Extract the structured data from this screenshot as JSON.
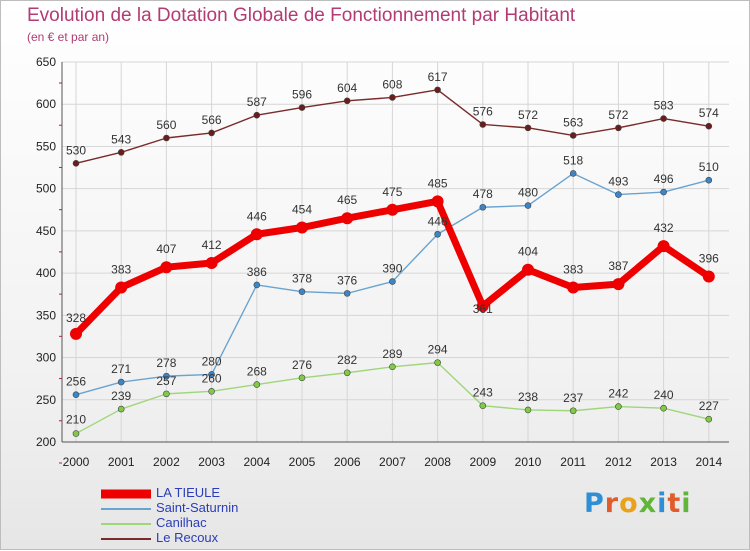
{
  "header": {
    "title": "Evolution de la Dotation Globale de Fonctionnement par Habitant",
    "subtitle": "(en € et par an)"
  },
  "logo": {
    "letters": [
      "P",
      "r",
      "o",
      "x",
      "i",
      "t",
      "i"
    ]
  },
  "colors": {
    "title": "#b23b73",
    "grid": "#d6d6d6",
    "axis_tick_accent": "#c0154f"
  },
  "chart_data": {
    "type": "line",
    "title": "Evolution de la Dotation Globale de Fonctionnement par Habitant",
    "subtitle": "(en € et par an)",
    "xlabel": "",
    "ylabel": "",
    "x": [
      2000,
      2001,
      2002,
      2003,
      2004,
      2005,
      2006,
      2007,
      2008,
      2009,
      2010,
      2011,
      2012,
      2013,
      2014
    ],
    "x_tick_labels": [
      "2000",
      "2001",
      "2002",
      "2003",
      "2004",
      "2005",
      "2006",
      "2007",
      "2008",
      "2009",
      "2010",
      "2011",
      "2012",
      "2013",
      "2014"
    ],
    "ylim": [
      200,
      650
    ],
    "y_ticks": [
      200,
      250,
      300,
      350,
      400,
      450,
      500,
      550,
      600,
      650
    ],
    "grid": true,
    "legend_position": "bottom-left",
    "series": [
      {
        "name": "Le Recoux",
        "color": "#7a2a2a",
        "marker_color": "#6b1d1d",
        "values": [
          530,
          543,
          560,
          566,
          587,
          596,
          604,
          608,
          617,
          576,
          572,
          563,
          572,
          583,
          574
        ]
      },
      {
        "name": "Saint-Saturnin",
        "color": "#6aa3cf",
        "marker_color": "#3a86c8",
        "values": [
          256,
          271,
          278,
          280,
          386,
          378,
          376,
          390,
          446,
          478,
          480,
          518,
          493,
          496,
          510
        ]
      },
      {
        "name": "Canilhac",
        "color": "#9fd67a",
        "marker_color": "#7fcb45",
        "values": [
          210,
          239,
          257,
          260,
          268,
          276,
          282,
          289,
          294,
          243,
          238,
          237,
          242,
          240,
          227
        ]
      },
      {
        "name": "LA TIEULE",
        "color": "#ee0000",
        "marker_color": "#ee0000",
        "values": [
          328,
          383,
          407,
          412,
          446,
          454,
          465,
          475,
          485,
          361,
          404,
          383,
          387,
          432,
          396
        ]
      }
    ],
    "legend_order": [
      "LA TIEULE",
      "Saint-Saturnin",
      "Canilhac",
      "Le Recoux"
    ]
  }
}
